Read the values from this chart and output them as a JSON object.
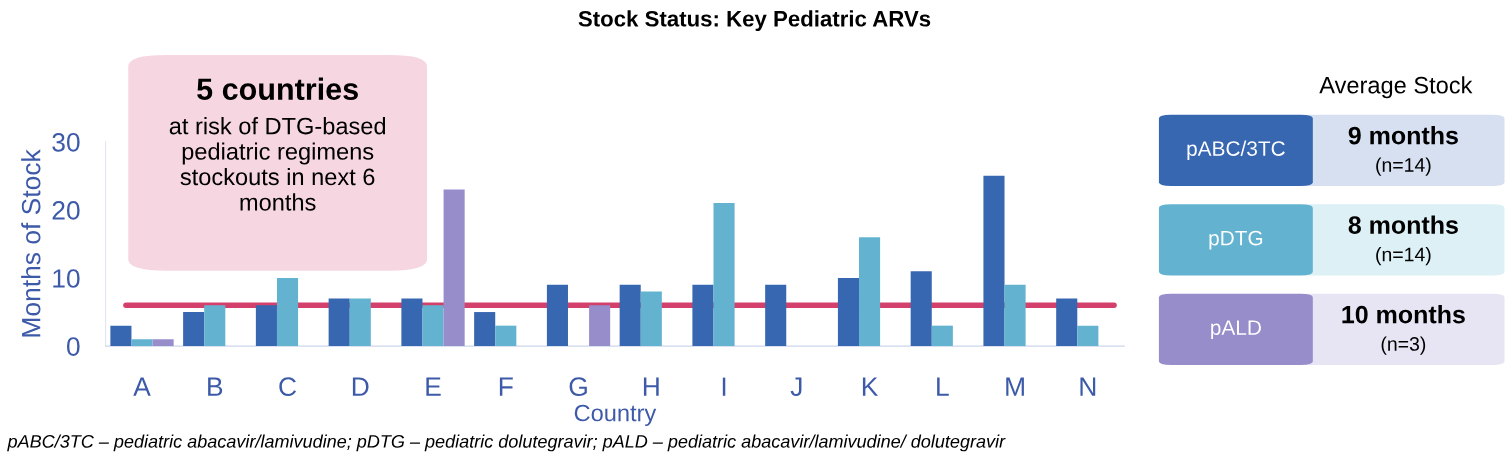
{
  "chart_data": {
    "type": "bar",
    "title": "Stock Status: Key Pediatric ARVs",
    "xlabel": "Country",
    "ylabel": "Months of Stock",
    "categories": [
      "A",
      "B",
      "C",
      "D",
      "E",
      "F",
      "G",
      "H",
      "I",
      "J",
      "K",
      "L",
      "M",
      "N"
    ],
    "series": [
      {
        "name": "pABC/3TC",
        "color": "#3867b2",
        "values": [
          3,
          5,
          6,
          7,
          7,
          5,
          9,
          9,
          9,
          9,
          10,
          11,
          25,
          7
        ]
      },
      {
        "name": "pDTG",
        "color": "#63b3d0",
        "values": [
          1,
          6,
          10,
          7,
          6,
          3,
          null,
          8,
          21,
          null,
          16,
          3,
          9,
          3
        ]
      },
      {
        "name": "pALD",
        "color": "#978dcb",
        "values": [
          1,
          null,
          null,
          null,
          23,
          null,
          6,
          null,
          null,
          null,
          null,
          null,
          null,
          null
        ]
      }
    ],
    "ylim": [
      0,
      30
    ],
    "yticks": [
      0,
      10,
      20,
      30
    ],
    "grid": false,
    "ref_lines": [
      {
        "axis": "y",
        "value": 6,
        "color": "#d3406b"
      }
    ],
    "legend": "right",
    "legend_title": "Average Stock",
    "annotations": [
      "5 countries",
      "at risk of DTG-based\npediatric regimens\nstockouts in next 6\nmonths",
      "9 months",
      "(n=14)",
      "8 months",
      "(n=14)",
      "10 months",
      "(n=3)",
      "pABC/3TC – pediatric abacavir/lamivudine; pDTG – pediatric dolutegravir; pALD – pediatric abacavir/lamivudine/ dolutegravir"
    ]
  }
}
